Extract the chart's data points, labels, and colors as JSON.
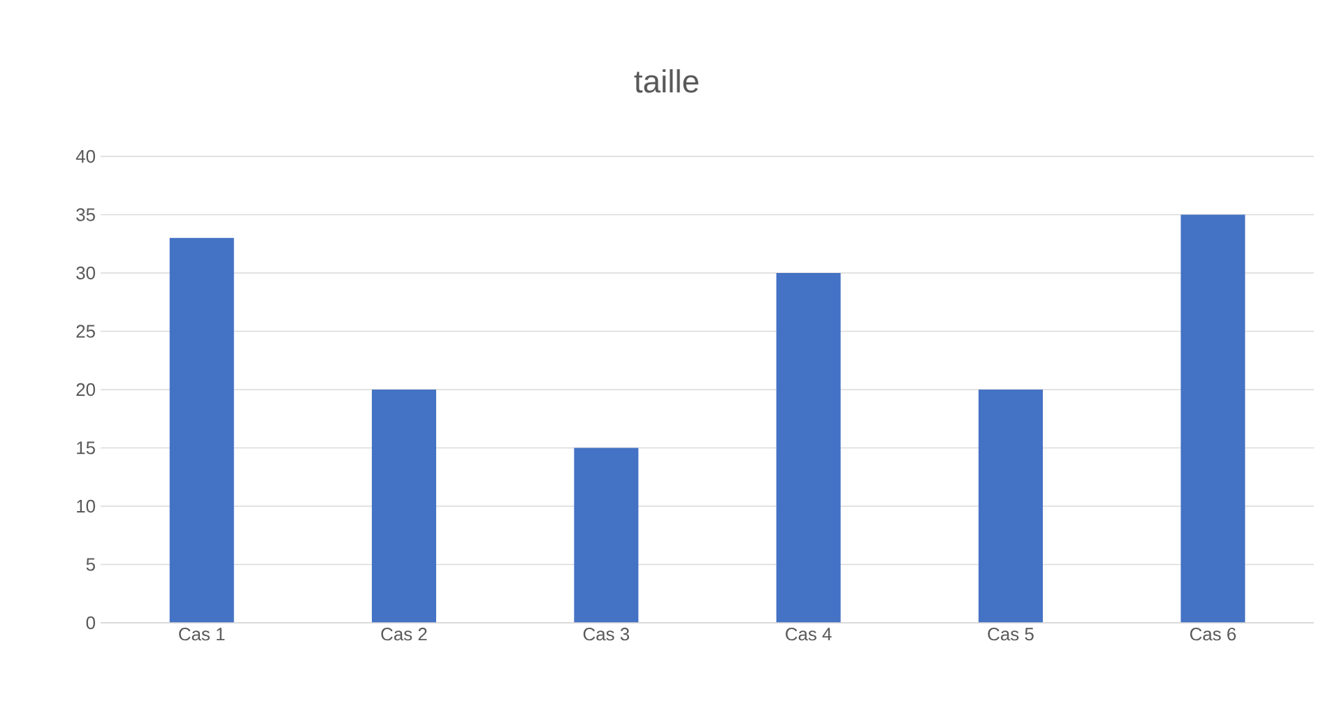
{
  "chart_data": {
    "type": "bar",
    "title": "taille",
    "categories": [
      "Cas 1",
      "Cas 2",
      "Cas 3",
      "Cas 4",
      "Cas 5",
      "Cas 6"
    ],
    "values": [
      33,
      20,
      15,
      30,
      20,
      35
    ],
    "color": "#4472c4",
    "ylim": [
      0,
      40
    ],
    "yticks": [
      0,
      5,
      10,
      15,
      20,
      25,
      30,
      35,
      40
    ],
    "grid": "y"
  }
}
